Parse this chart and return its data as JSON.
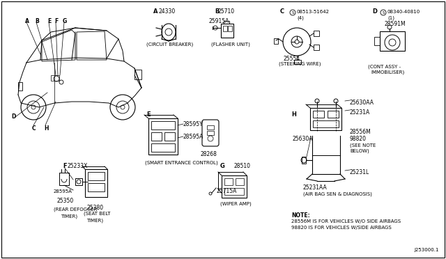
{
  "bg_color": "#ffffff",
  "line_color": "#000000",
  "fig_width": 6.4,
  "fig_height": 3.72,
  "part_number_bottom": "J253000.1",
  "note_line1": "NOTE:",
  "note_line2": "28556M IS FOR VEHICLES W/O SIDE AIRBAGS",
  "note_line3": "98820 IS FOR VEHICLES W/SIDE AIRBAGS",
  "see_note": "(SEE NOTE\nBELOW)"
}
